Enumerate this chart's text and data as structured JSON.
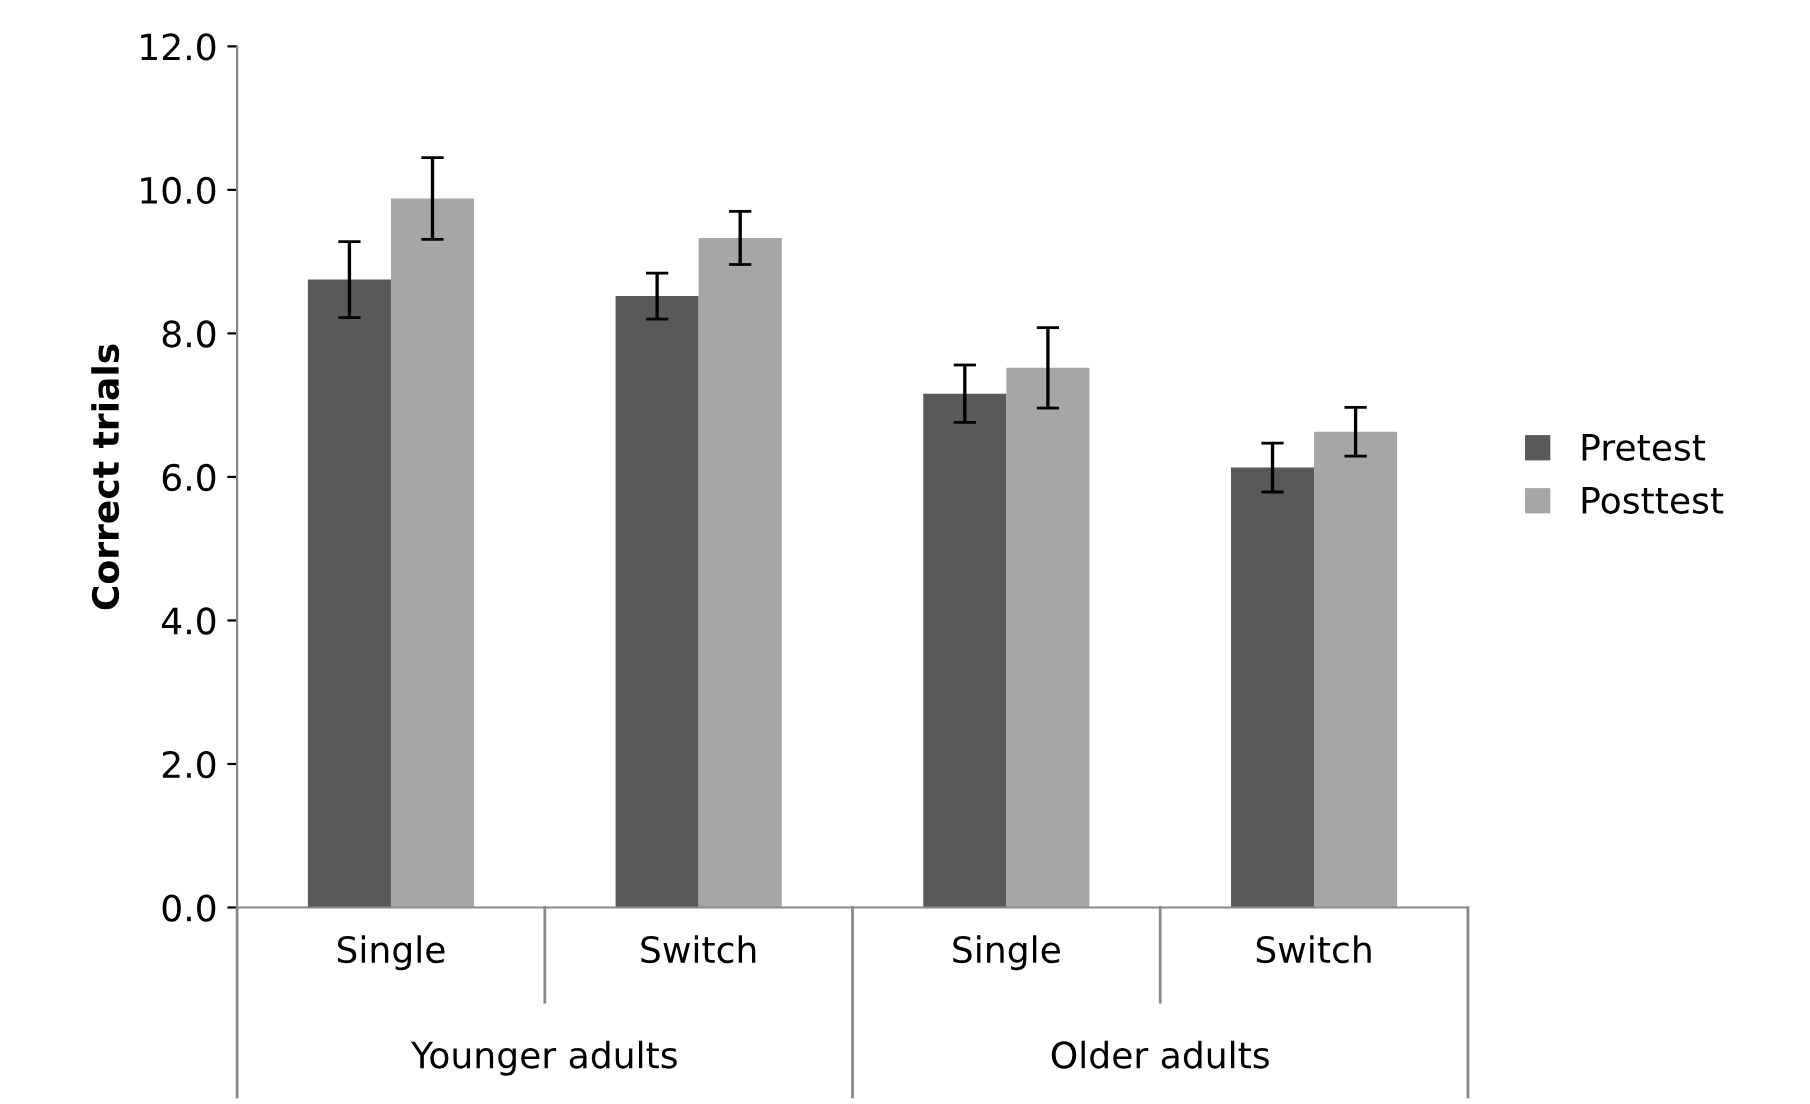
{
  "chart_data": {
    "type": "bar",
    "ylabel": "Correct trials",
    "categories": [
      "Single",
      "Switch",
      "Single",
      "Switch"
    ],
    "annotations": [
      "Younger adults",
      "Older adults"
    ],
    "series": [
      {
        "name": "Pretest",
        "color": "#595959",
        "values": [
          8.75,
          8.52,
          7.16,
          6.13
        ],
        "errors": [
          0.53,
          0.32,
          0.4,
          0.34
        ]
      },
      {
        "name": "Posttest",
        "color": "#a6a6a6",
        "values": [
          9.88,
          9.33,
          7.52,
          6.63
        ],
        "errors": [
          0.57,
          0.37,
          0.56,
          0.34
        ]
      }
    ],
    "ylim": [
      0,
      12
    ],
    "yticks": [
      {
        "value": 0,
        "label": "0.0"
      },
      {
        "value": 2,
        "label": "2.0"
      },
      {
        "value": 4,
        "label": "4.0"
      },
      {
        "value": 6,
        "label": "6.0"
      },
      {
        "value": 8,
        "label": "8.0"
      },
      {
        "value": 10,
        "label": "10.0"
      },
      {
        "value": 12,
        "label": "12.0"
      }
    ],
    "grid": false,
    "legend": "right"
  }
}
